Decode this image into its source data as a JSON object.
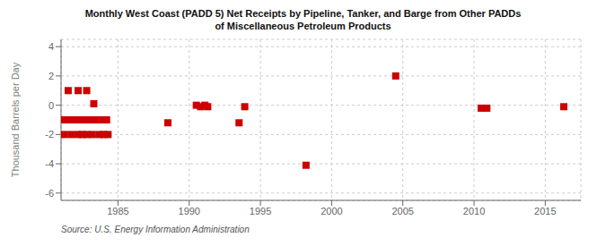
{
  "chart_data": {
    "type": "scatter",
    "title": "Monthly West Coast (PADD 5) Net Receipts by Pipeline, Tanker, and Barge from Other PADDs\nof Miscellaneous Petroleum Products",
    "y_label": "Thousand Barrels per Day",
    "annotations": [
      "Source: U.S. Energy Information Administration"
    ],
    "x": [
      1981.5,
      1982.2,
      1982.8,
      1983.3,
      1981.2,
      1981.5,
      1981.8,
      1982.0,
      1982.2,
      1982.5,
      1982.7,
      1983.0,
      1983.2,
      1983.5,
      1983.7,
      1984.0,
      1984.2,
      1981.2,
      1981.7,
      1982.2,
      1982.5,
      1982.8,
      1983.2,
      1983.7,
      1984.0,
      1984.3,
      1988.5,
      1990.5,
      1990.8,
      1991.1,
      1991.3,
      1993.5,
      1993.9,
      1998.2,
      2004.5,
      2010.5,
      2010.9,
      2016.3
    ],
    "values": [
      1.0,
      1.0,
      1.0,
      0.1,
      -1.0,
      -1.0,
      -1.0,
      -1.0,
      -1.0,
      -1.0,
      -1.0,
      -1.0,
      -1.0,
      -1.0,
      -1.0,
      -1.0,
      -1.0,
      -2.0,
      -2.0,
      -2.0,
      -2.0,
      -2.0,
      -2.0,
      -2.0,
      -2.0,
      -2.0,
      -1.2,
      0.0,
      -0.1,
      0.0,
      -0.1,
      -1.2,
      -0.1,
      -4.1,
      2.0,
      -0.2,
      -0.2,
      -0.1
    ],
    "color": "#cc0000",
    "marker": "square",
    "xlim": [
      1981.0,
      2017.5
    ],
    "ylim": [
      -6.5,
      4.5
    ],
    "xticks": [
      1985,
      1990,
      1995,
      2000,
      2005,
      2010,
      2015
    ],
    "yticks": [
      -6,
      -4,
      -2,
      0,
      2,
      4
    ],
    "grid": true
  }
}
